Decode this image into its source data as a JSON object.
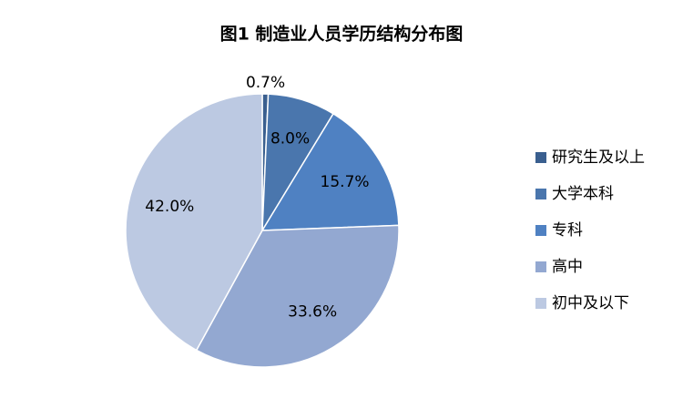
{
  "chart_data": {
    "type": "pie",
    "title": "图1 制造业人员学历结构分布图",
    "categories": [
      "研究生及以上",
      "大学本科",
      "专科",
      "高中",
      "初中及以下"
    ],
    "values": [
      0.7,
      8.0,
      15.7,
      33.6,
      42.0
    ],
    "value_labels": [
      "0.7%",
      "8.0%",
      "15.7%",
      "33.6%",
      "42.0%"
    ],
    "colors": [
      "#3a5f8f",
      "#4a76ad",
      "#4f81c2",
      "#93a8d1",
      "#bcc9e2"
    ],
    "legend": "right"
  }
}
